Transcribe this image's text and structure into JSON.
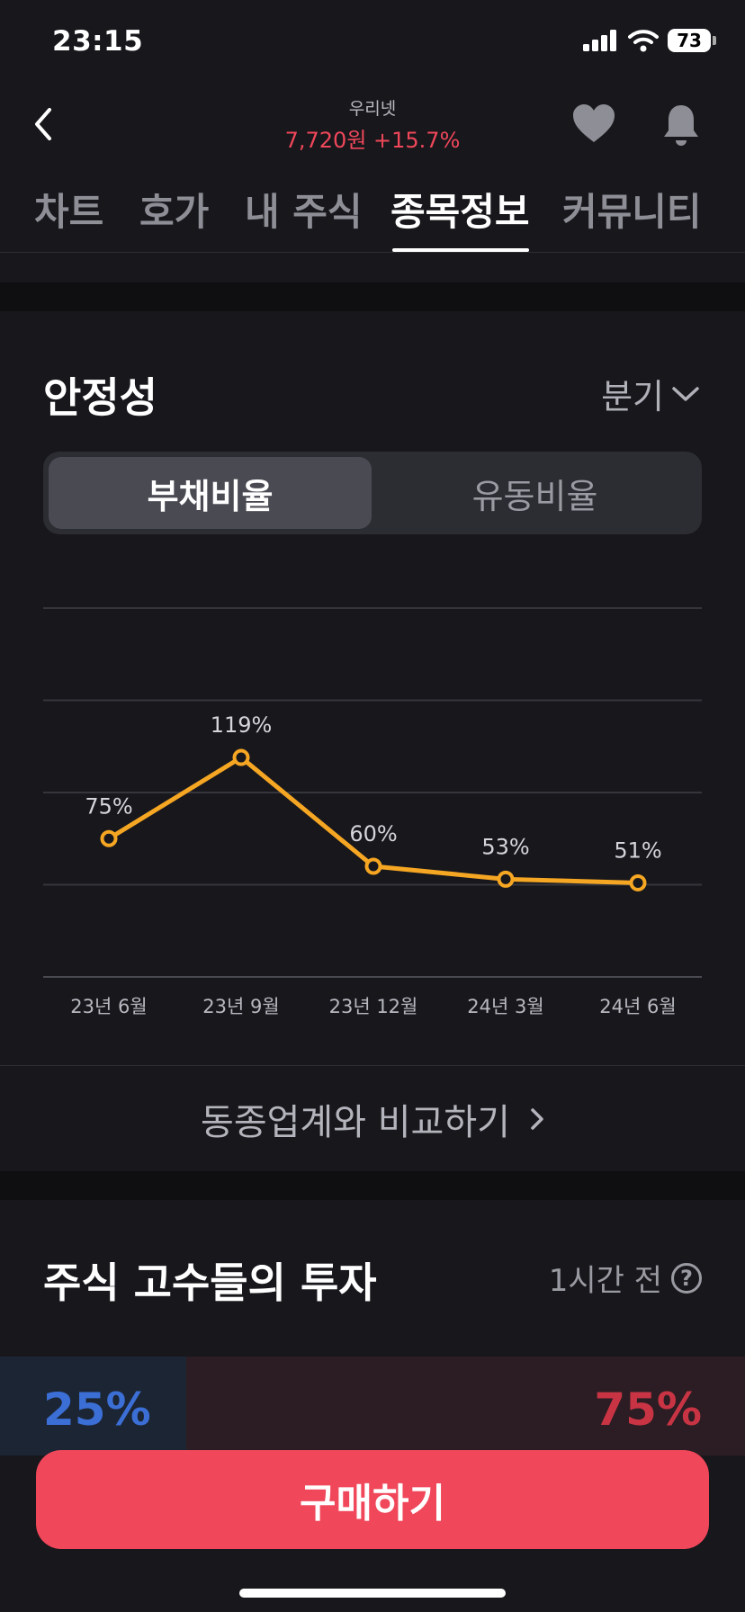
{
  "status_bar": {
    "time": "23:15",
    "battery": "73"
  },
  "header": {
    "stock_name": "우리넷",
    "price": "7,720원 +15.7%"
  },
  "tabs": [
    {
      "label": "차트"
    },
    {
      "label": "호가"
    },
    {
      "label": "내 주식"
    },
    {
      "label": "종목정보"
    },
    {
      "label": "커뮤니티"
    }
  ],
  "stability": {
    "title": "안정성",
    "period": "분기",
    "segments": {
      "active": "부채비율",
      "inactive": "유동비율"
    },
    "compare_label": "동종업계와 비교하기"
  },
  "chart_data": {
    "type": "line",
    "categories": [
      "23년 6월",
      "23년 9월",
      "23년 12월",
      "24년 3월",
      "24년 6월"
    ],
    "values": [
      75,
      119,
      60,
      53,
      51
    ],
    "data_labels": [
      "75%",
      "119%",
      "60%",
      "53%",
      "51%"
    ],
    "ylim": [
      0,
      200
    ],
    "grid": true,
    "color": "#f5a623"
  },
  "experts": {
    "title": "주식 고수들의 투자",
    "time_ago": "1시간 전",
    "buy_ratio": "25%",
    "sell_ratio": "75%",
    "buy_value": 25,
    "sell_value": 75
  },
  "cta": {
    "buy_label": "구매하기"
  },
  "colors": {
    "accent_red": "#f0475a",
    "blue": "#3b6fd6",
    "line": "#f5a623"
  }
}
